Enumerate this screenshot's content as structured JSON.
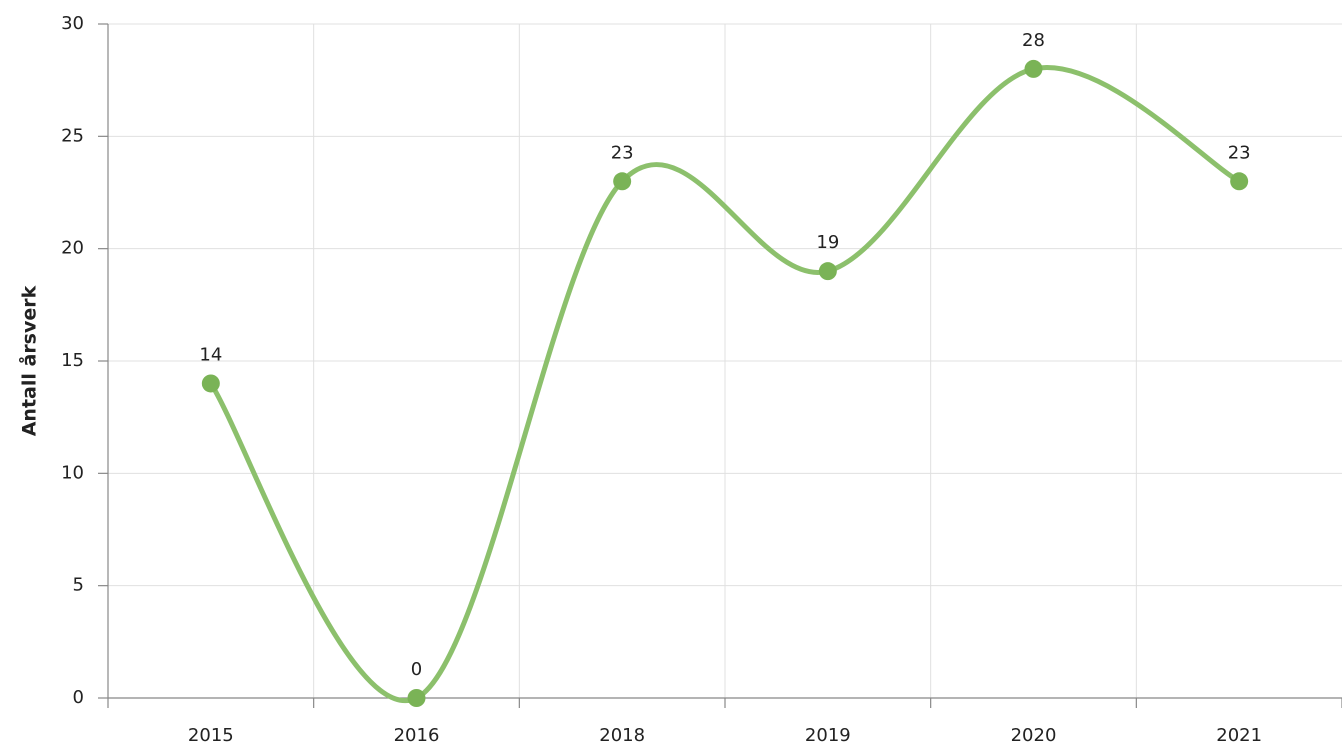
{
  "chart_data": {
    "type": "line",
    "y_label": "Antall årsverk",
    "categories": [
      "2015",
      "2016",
      "2018",
      "2019",
      "2020",
      "2021"
    ],
    "series": [
      {
        "color": "#8cc06c",
        "values": [
          14,
          0,
          23,
          19,
          28,
          23
        ]
      }
    ],
    "ylim": [
      0,
      30
    ],
    "yticks": [
      0,
      5,
      10,
      15,
      20,
      25,
      30
    ],
    "grid": true,
    "smooth": true
  }
}
